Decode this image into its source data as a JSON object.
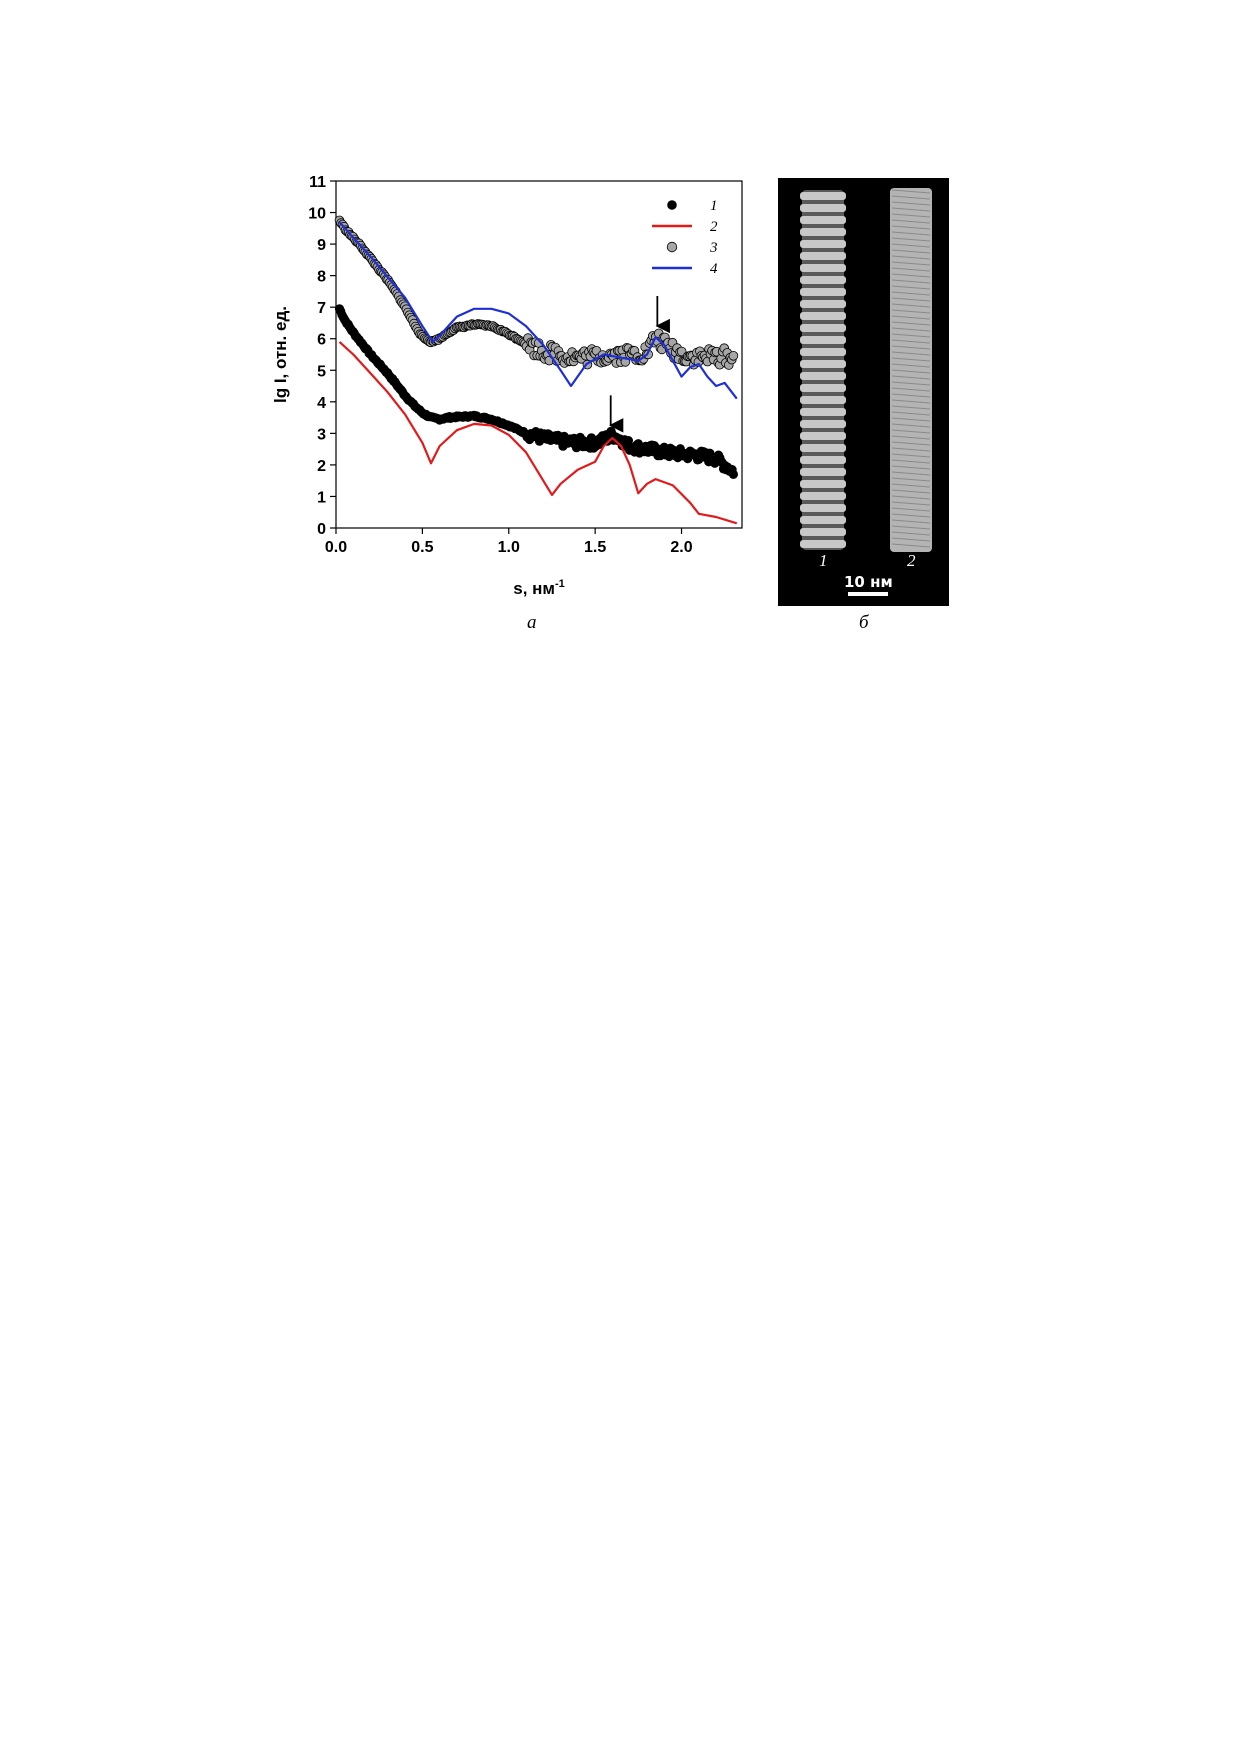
{
  "panel_labels": {
    "a": "а",
    "b": "б"
  },
  "chart_data": {
    "type": "scatter",
    "xlabel": "s, нм",
    "xlabel_superscript": "-1",
    "ylabel": "lg I, отн. ед.",
    "xlim": [
      0.0,
      2.35
    ],
    "ylim": [
      0,
      11
    ],
    "x_ticks": [
      "0.0",
      "0.5",
      "1.0",
      "1.5",
      "2.0"
    ],
    "x_tick_values": [
      0.0,
      0.5,
      1.0,
      1.5,
      2.0
    ],
    "y_ticks": [
      "0",
      "1",
      "2",
      "3",
      "4",
      "5",
      "6",
      "7",
      "8",
      "9",
      "10",
      "11"
    ],
    "y_tick_values": [
      0,
      1,
      2,
      3,
      4,
      5,
      6,
      7,
      8,
      9,
      10,
      11
    ],
    "grid": false,
    "legend_position": "top-right",
    "series": [
      {
        "name": "1",
        "kind": "points",
        "color": "#000000",
        "points": [
          [
            0.02,
            6.95
          ],
          [
            0.05,
            6.6
          ],
          [
            0.1,
            6.2
          ],
          [
            0.15,
            5.85
          ],
          [
            0.2,
            5.5
          ],
          [
            0.25,
            5.2
          ],
          [
            0.3,
            4.9
          ],
          [
            0.35,
            4.55
          ],
          [
            0.4,
            4.2
          ],
          [
            0.45,
            3.9
          ],
          [
            0.5,
            3.65
          ],
          [
            0.55,
            3.5
          ],
          [
            0.6,
            3.45
          ],
          [
            0.65,
            3.5
          ],
          [
            0.7,
            3.52
          ],
          [
            0.8,
            3.55
          ],
          [
            0.9,
            3.45
          ],
          [
            1.0,
            3.25
          ],
          [
            1.1,
            3.0
          ],
          [
            1.2,
            2.85
          ],
          [
            1.3,
            2.75
          ],
          [
            1.4,
            2.7
          ],
          [
            1.5,
            2.7
          ],
          [
            1.55,
            2.8
          ],
          [
            1.6,
            2.95
          ],
          [
            1.65,
            2.8
          ],
          [
            1.7,
            2.6
          ],
          [
            1.8,
            2.5
          ],
          [
            1.9,
            2.4
          ],
          [
            2.0,
            2.35
          ],
          [
            2.1,
            2.3
          ],
          [
            2.2,
            2.2
          ],
          [
            2.25,
            2.0
          ],
          [
            2.3,
            1.8
          ]
        ]
      },
      {
        "name": "2",
        "kind": "line",
        "color": "#e31a1c",
        "points": [
          [
            0.02,
            5.9
          ],
          [
            0.1,
            5.5
          ],
          [
            0.2,
            4.9
          ],
          [
            0.3,
            4.3
          ],
          [
            0.4,
            3.6
          ],
          [
            0.5,
            2.7
          ],
          [
            0.55,
            2.05
          ],
          [
            0.6,
            2.6
          ],
          [
            0.7,
            3.1
          ],
          [
            0.8,
            3.3
          ],
          [
            0.9,
            3.25
          ],
          [
            1.0,
            2.95
          ],
          [
            1.1,
            2.4
          ],
          [
            1.2,
            1.5
          ],
          [
            1.25,
            1.05
          ],
          [
            1.3,
            1.4
          ],
          [
            1.4,
            1.85
          ],
          [
            1.5,
            2.1
          ],
          [
            1.55,
            2.6
          ],
          [
            1.6,
            2.85
          ],
          [
            1.65,
            2.6
          ],
          [
            1.7,
            2.0
          ],
          [
            1.75,
            1.1
          ],
          [
            1.8,
            1.4
          ],
          [
            1.85,
            1.55
          ],
          [
            1.95,
            1.35
          ],
          [
            2.05,
            0.8
          ],
          [
            2.1,
            0.45
          ],
          [
            2.2,
            0.35
          ],
          [
            2.32,
            0.15
          ]
        ]
      },
      {
        "name": "3",
        "kind": "points",
        "color": "#a6a6a6",
        "points": [
          [
            0.02,
            9.75
          ],
          [
            0.05,
            9.5
          ],
          [
            0.1,
            9.2
          ],
          [
            0.15,
            8.9
          ],
          [
            0.2,
            8.55
          ],
          [
            0.25,
            8.2
          ],
          [
            0.3,
            7.85
          ],
          [
            0.35,
            7.45
          ],
          [
            0.4,
            7.0
          ],
          [
            0.45,
            6.5
          ],
          [
            0.5,
            6.05
          ],
          [
            0.55,
            5.9
          ],
          [
            0.6,
            6.0
          ],
          [
            0.65,
            6.2
          ],
          [
            0.7,
            6.35
          ],
          [
            0.8,
            6.45
          ],
          [
            0.9,
            6.4
          ],
          [
            1.0,
            6.15
          ],
          [
            1.1,
            5.85
          ],
          [
            1.2,
            5.6
          ],
          [
            1.3,
            5.5
          ],
          [
            1.4,
            5.4
          ],
          [
            1.5,
            5.45
          ],
          [
            1.6,
            5.5
          ],
          [
            1.7,
            5.5
          ],
          [
            1.8,
            5.55
          ],
          [
            1.85,
            6.05
          ],
          [
            1.9,
            5.8
          ],
          [
            2.0,
            5.5
          ],
          [
            2.1,
            5.4
          ],
          [
            2.2,
            5.45
          ],
          [
            2.3,
            5.4
          ]
        ]
      },
      {
        "name": "4",
        "kind": "line",
        "color": "#1f2fd6",
        "points": [
          [
            0.02,
            9.7
          ],
          [
            0.1,
            9.2
          ],
          [
            0.2,
            8.6
          ],
          [
            0.3,
            7.95
          ],
          [
            0.4,
            7.3
          ],
          [
            0.5,
            6.4
          ],
          [
            0.56,
            5.9
          ],
          [
            0.6,
            6.1
          ],
          [
            0.7,
            6.7
          ],
          [
            0.8,
            6.95
          ],
          [
            0.9,
            6.95
          ],
          [
            1.0,
            6.8
          ],
          [
            1.1,
            6.4
          ],
          [
            1.2,
            5.8
          ],
          [
            1.3,
            5.0
          ],
          [
            1.36,
            4.5
          ],
          [
            1.45,
            5.2
          ],
          [
            1.55,
            5.5
          ],
          [
            1.65,
            5.4
          ],
          [
            1.75,
            5.3
          ],
          [
            1.8,
            5.5
          ],
          [
            1.85,
            6.05
          ],
          [
            1.9,
            5.8
          ],
          [
            1.95,
            5.3
          ],
          [
            2.0,
            4.8
          ],
          [
            2.05,
            5.1
          ],
          [
            2.1,
            5.2
          ],
          [
            2.15,
            4.8
          ],
          [
            2.2,
            4.5
          ],
          [
            2.25,
            4.6
          ],
          [
            2.32,
            4.1
          ]
        ]
      }
    ],
    "annotations": [
      {
        "type": "arrow",
        "x": 1.86,
        "y": 6.15
      },
      {
        "type": "arrow",
        "x": 1.59,
        "y": 3.0
      }
    ]
  },
  "micrograph": {
    "labels": [
      "1",
      "2"
    ],
    "scale_label": "10 нм"
  }
}
